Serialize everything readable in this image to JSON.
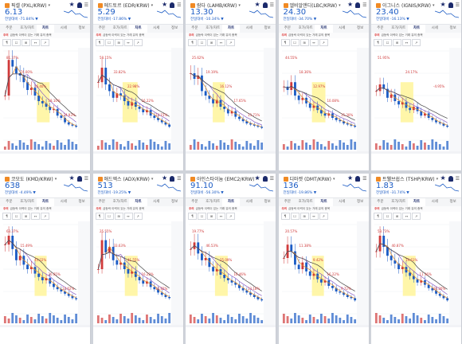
{
  "tabs": [
    "주문",
    "호가/차트",
    "차트",
    "시세",
    "정보"
  ],
  "notice": {
    "badge": "주의",
    "text": "급등락 이력이 있는 거래 유의 종목"
  },
  "tools": [
    "¶",
    "☐",
    "⊞",
    "↔",
    "↗"
  ],
  "colors": {
    "up": "#d03a3a",
    "down": "#1b5bc4",
    "highlight": "#fff59a",
    "ma1": "#444444",
    "ma2": "#e08a2a",
    "ma3": "#8a5cc4"
  },
  "panels": [
    {
      "name": "픽셀 (PXL/KRW)",
      "price": "6.13",
      "change": "전일대비 -71.84% ▼",
      "series": [
        40,
        72,
        66,
        60,
        58,
        52,
        45,
        47,
        40,
        35,
        33,
        30,
        27,
        28,
        22,
        20,
        16,
        14,
        13,
        12
      ],
      "labels": [
        "81.37%",
        "74.00%",
        "26.40%",
        "18.10%",
        "-24.93%"
      ],
      "highlight": [
        0.45,
        0.62
      ]
    },
    {
      "name": "에드토르 (EDR/KRW)",
      "price": "5.29",
      "change": "전일대비 -17.86% ▼",
      "series": [
        52,
        65,
        50,
        44,
        38,
        42,
        40,
        35,
        31,
        34,
        30,
        28,
        25,
        27,
        22,
        20,
        18,
        16,
        14,
        12
      ],
      "labels": [
        "58.15%",
        "33.82%",
        "22.98%",
        "16.22%",
        "14.15%"
      ],
      "highlight": [
        0.35,
        0.55
      ]
    },
    {
      "name": "람다 (LAMB/KRW)",
      "price": "13.30",
      "change": "전일대비 -10.34% ▼",
      "series": [
        60,
        55,
        58,
        44,
        40,
        37,
        33,
        36,
        30,
        28,
        24,
        26,
        21,
        19,
        17,
        15,
        14,
        13,
        12,
        11
      ],
      "labels": [
        "25.62%",
        "19.19%",
        "16.12%",
        "17.65%",
        "13.71%"
      ],
      "highlight": [
        0.32,
        0.48
      ]
    },
    {
      "name": "엘비알앤디(LBC/KRW)",
      "price": "24.30",
      "change": "전일대비 -34.70% ▼",
      "series": [
        48,
        45,
        52,
        40,
        36,
        38,
        33,
        29,
        31,
        27,
        24,
        22,
        24,
        20,
        18,
        17,
        15,
        14,
        13,
        12
      ],
      "labels": [
        "44.55%",
        "18.36%",
        "12.97%",
        "10.08%",
        "15.30%"
      ],
      "highlight": [
        0.4,
        0.58
      ]
    },
    {
      "name": "이그니스 (IGNIS/KRW)",
      "price": "23.40",
      "change": "전일대비 -16.13% ▼",
      "series": [
        44,
        50,
        46,
        38,
        41,
        35,
        32,
        34,
        29,
        27,
        30,
        26,
        22,
        24,
        20,
        18,
        16,
        15,
        13,
        12
      ],
      "labels": [
        "51.95%",
        "24.17%",
        "-4.95%"
      ],
      "highlight": [
        0.35,
        0.52
      ]
    },
    {
      "name": "코모도 (KMD/KRW)",
      "price": "638",
      "change": "전일대비 -4.49% ▼",
      "series": [
        62,
        70,
        58,
        48,
        52,
        44,
        40,
        42,
        36,
        33,
        30,
        32,
        27,
        24,
        22,
        20,
        18,
        16,
        14,
        13
      ],
      "labels": [
        "63.37%",
        "15.49%",
        "45.22%",
        "20.65%",
        "14.62%"
      ],
      "highlight": [
        0.42,
        0.58
      ]
    },
    {
      "name": "애드엑스 (ADX/KRW)",
      "price": "513",
      "change": "전일대비 -19.25% ▼",
      "series": [
        40,
        66,
        55,
        60,
        48,
        44,
        46,
        40,
        36,
        38,
        33,
        30,
        27,
        29,
        24,
        22,
        19,
        17,
        15,
        14
      ],
      "labels": [
        "25.55%",
        "33.63%",
        "41.55%",
        "16.22%",
        "10.82%"
      ],
      "highlight": [
        0.38,
        0.55
      ]
    },
    {
      "name": "아인스타이늄 (EMC2/KRW)",
      "price": "91.10",
      "change": "전일대비 -56.30% ▼",
      "series": [
        58,
        64,
        54,
        48,
        50,
        42,
        38,
        40,
        35,
        32,
        30,
        28,
        26,
        23,
        21,
        19,
        17,
        15,
        13,
        12
      ],
      "labels": [
        "19.77%",
        "46.53%",
        "25.09%",
        "16.46%",
        "13.18%"
      ],
      "highlight": [
        0.35,
        0.52
      ]
    },
    {
      "name": "디마켓 (DMT/KRW)",
      "price": "136",
      "change": "전일대비 -19.86% ▼",
      "series": [
        50,
        62,
        56,
        44,
        40,
        46,
        38,
        34,
        36,
        31,
        28,
        30,
        25,
        23,
        20,
        19,
        17,
        15,
        14,
        12
      ],
      "labels": [
        "20.57%",
        "11.38%",
        "9.42%",
        "16.22%",
        "9.72%"
      ],
      "highlight": [
        0.4,
        0.56
      ]
    },
    {
      "name": "트웰브쉽스 (TSHP/KRW)",
      "price": "1.83",
      "change": "전일대비 -31.74% ▼",
      "series": [
        56,
        70,
        60,
        52,
        48,
        45,
        40,
        42,
        37,
        34,
        31,
        28,
        30,
        26,
        23,
        21,
        18,
        16,
        14,
        12
      ],
      "labels": [
        "53.73%",
        "40.87%",
        "19.61%",
        "11.36%",
        "26.20%"
      ],
      "highlight": [
        0.38,
        0.55
      ]
    }
  ]
}
